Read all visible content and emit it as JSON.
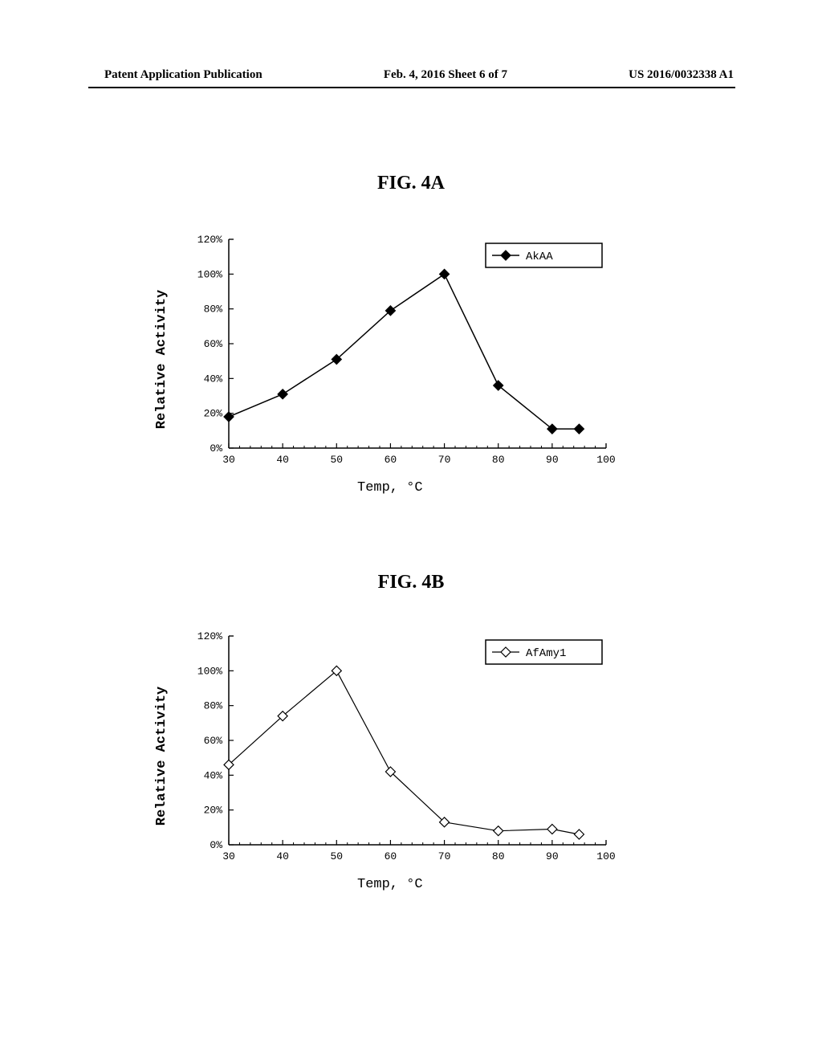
{
  "header": {
    "left": "Patent Application Publication",
    "center": "Feb. 4, 2016   Sheet 6 of 7",
    "right": "US 2016/0032338 A1"
  },
  "figures": {
    "fig4a": {
      "title": "FIG. 4A",
      "chart": {
        "type": "line",
        "series_name": "AkAA",
        "x_values": [
          30,
          40,
          50,
          60,
          70,
          80,
          90,
          95
        ],
        "y_values": [
          18,
          31,
          51,
          79,
          100,
          36,
          11,
          11
        ],
        "marker": "diamond",
        "marker_fill": "#000000",
        "line_color": "#000000",
        "line_width": 1.5,
        "marker_size": 6,
        "xlim": [
          30,
          100
        ],
        "ylim": [
          0,
          120
        ],
        "xtick_step": 10,
        "ytick_step": 20,
        "y_suffix": "%",
        "xlabel": "Temp, °C",
        "ylabel": "Relative Activity",
        "axis_fontsize": 14,
        "tick_fontsize": 13,
        "background_color": "#ffffff",
        "axis_color": "#000000",
        "legend_border_color": "#000000",
        "legend_position": "top-right",
        "font_family": "Courier New"
      }
    },
    "fig4b": {
      "title": "FIG. 4B",
      "chart": {
        "type": "line",
        "series_name": "AfAmy1",
        "x_values": [
          30,
          40,
          50,
          60,
          70,
          80,
          90,
          95
        ],
        "y_values": [
          46,
          74,
          100,
          42,
          13,
          8,
          9,
          6
        ],
        "marker": "diamond",
        "marker_fill": "#ffffff",
        "marker_stroke": "#000000",
        "line_color": "#000000",
        "line_width": 1.2,
        "marker_size": 6,
        "xlim": [
          30,
          100
        ],
        "ylim": [
          0,
          120
        ],
        "xtick_step": 10,
        "ytick_step": 20,
        "y_suffix": "%",
        "xlabel": "Temp, °C",
        "ylabel": "Relative Activity",
        "axis_fontsize": 14,
        "tick_fontsize": 13,
        "background_color": "#ffffff",
        "axis_color": "#000000",
        "legend_border_color": "#000000",
        "legend_position": "top-right",
        "font_family": "Courier New"
      }
    }
  }
}
